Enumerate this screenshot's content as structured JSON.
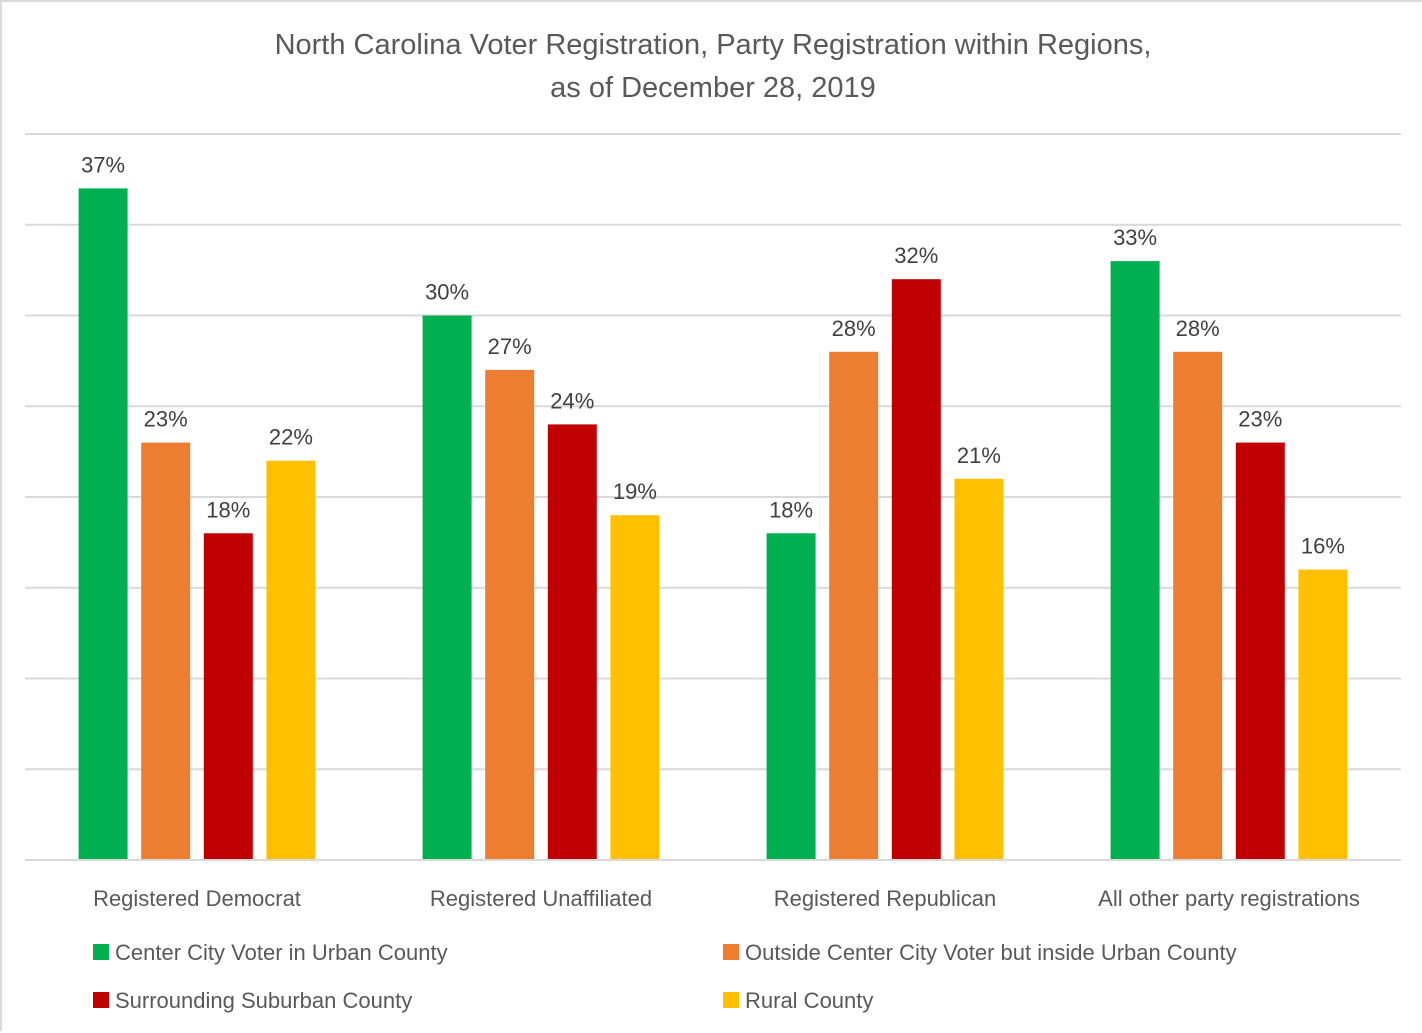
{
  "chart_data": {
    "type": "bar",
    "title_lines": [
      "North Carolina Voter Registration, Party Registration within Regions,",
      "as of December 28, 2019"
    ],
    "xlabel": "",
    "ylabel": "",
    "categories": [
      "Registered Democrat",
      "Registered Unaffiliated",
      "Registered Republican",
      "All other party registrations"
    ],
    "series": [
      {
        "name": "Center City Voter in Urban County",
        "color": "#00B050",
        "values": [
          37,
          30,
          18,
          33
        ],
        "labels": [
          "37%",
          "30%",
          "18%",
          "33%"
        ]
      },
      {
        "name": "Outside Center City Voter but inside Urban County",
        "color": "#ED7D31",
        "values": [
          23,
          27,
          28,
          28
        ],
        "labels": [
          "23%",
          "27%",
          "28%",
          "28%"
        ]
      },
      {
        "name": "Surrounding Suburban County",
        "color": "#C00000",
        "values": [
          18,
          24,
          32,
          23
        ],
        "labels": [
          "18%",
          "24%",
          "32%",
          "23%"
        ]
      },
      {
        "name": "Rural County",
        "color": "#FFC000",
        "values": [
          22,
          19,
          21,
          16
        ],
        "labels": [
          "22%",
          "19%",
          "21%",
          "16%"
        ]
      }
    ],
    "ylim": [
      0,
      40
    ],
    "ytick_step": 5,
    "y_axis_labels_shown": false,
    "grid": true,
    "legend_position": "bottom",
    "value_format": "percent"
  }
}
